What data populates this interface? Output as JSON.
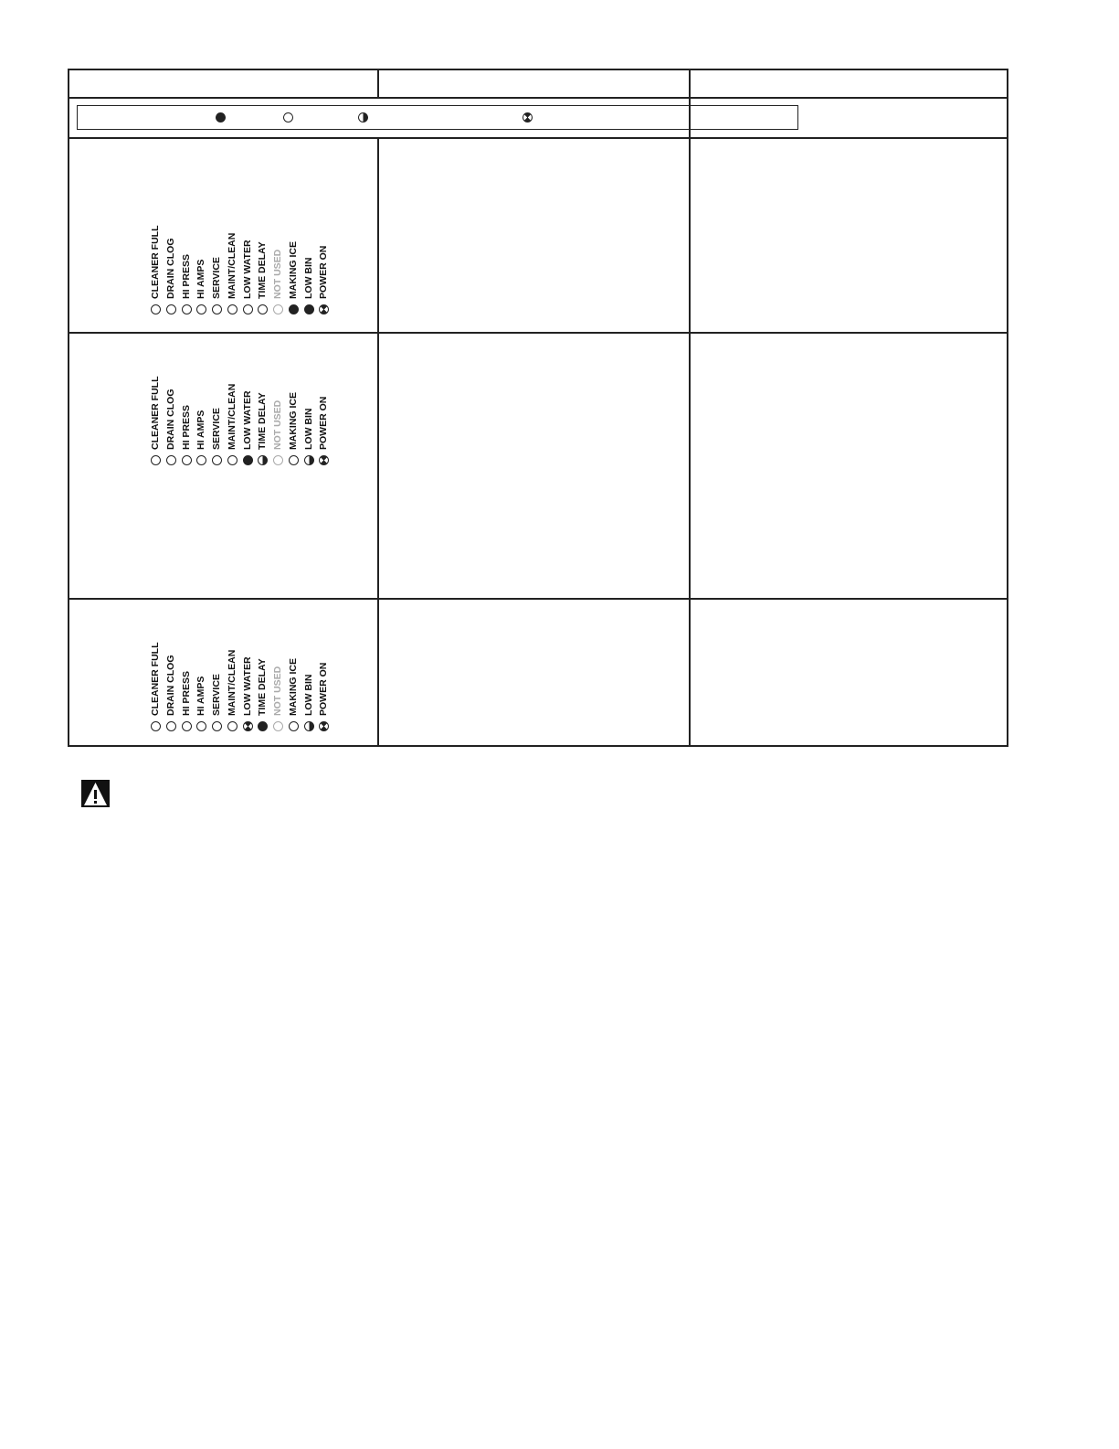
{
  "legend": {
    "symbols": [
      "on",
      "off",
      "half",
      "flash"
    ]
  },
  "led_labels": [
    "CLEANER FULL",
    "DRAIN CLOG",
    "HI PRESS",
    "HI AMPS",
    "SERVICE",
    "MAINT/CLEAN",
    "LOW WATER",
    "TIME DELAY",
    "NOT USED",
    "MAKING ICE",
    "LOW BIN",
    "POWER ON"
  ],
  "led_label_grey": [
    false,
    false,
    false,
    false,
    false,
    false,
    false,
    false,
    true,
    false,
    false,
    false
  ],
  "panels": [
    {
      "states": [
        "off",
        "off",
        "off",
        "off",
        "off",
        "off",
        "off",
        "off",
        "off",
        "on",
        "on",
        "flash"
      ]
    },
    {
      "states": [
        "off",
        "off",
        "off",
        "off",
        "off",
        "off",
        "on",
        "half",
        "off",
        "off",
        "half",
        "flash"
      ]
    },
    {
      "states": [
        "off",
        "off",
        "off",
        "off",
        "off",
        "off",
        "flash",
        "on",
        "off",
        "off",
        "half",
        "flash"
      ]
    }
  ],
  "warning_icon": "warning-triangle-icon"
}
